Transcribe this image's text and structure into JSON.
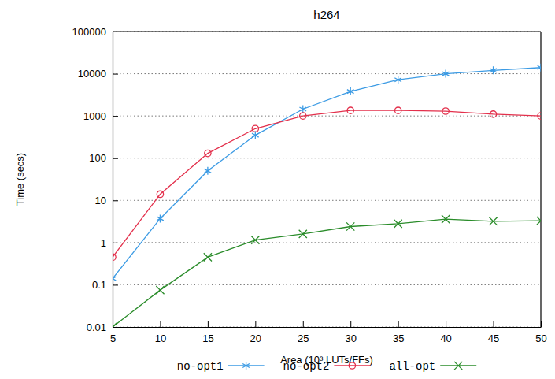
{
  "chart_data": {
    "type": "line",
    "title": "h264",
    "x_label": "Area (10³ LUTs/FFs)",
    "y_label": "Time (secs)",
    "x": [
      5,
      10,
      15,
      20,
      25,
      30,
      35,
      40,
      45,
      50
    ],
    "series": [
      {
        "name": "no-opt1",
        "color": "#3c9be4",
        "marker": "asterisk",
        "values": [
          0.14,
          3.7,
          50,
          350,
          1450,
          3800,
          7200,
          10000,
          12000,
          14000
        ]
      },
      {
        "name": "no-opt2",
        "color": "#e3304c",
        "marker": "circle",
        "values": [
          0.45,
          14,
          130,
          500,
          1000,
          1350,
          1350,
          1300,
          1100,
          1000
        ]
      },
      {
        "name": "all-opt",
        "color": "#2a8c2a",
        "marker": "x",
        "values": [
          0.01,
          0.075,
          0.45,
          1.15,
          1.6,
          2.4,
          2.8,
          3.6,
          3.2,
          3.3
        ]
      }
    ],
    "xlim": [
      5,
      50
    ],
    "xticks": [
      5,
      10,
      15,
      20,
      25,
      30,
      35,
      40,
      45,
      50
    ],
    "ylim": [
      0.01,
      100000
    ],
    "yticks": [
      0.01,
      0.1,
      1,
      10,
      100,
      1000,
      10000,
      100000
    ],
    "log": "y",
    "grid": true,
    "legend": "bottom"
  }
}
